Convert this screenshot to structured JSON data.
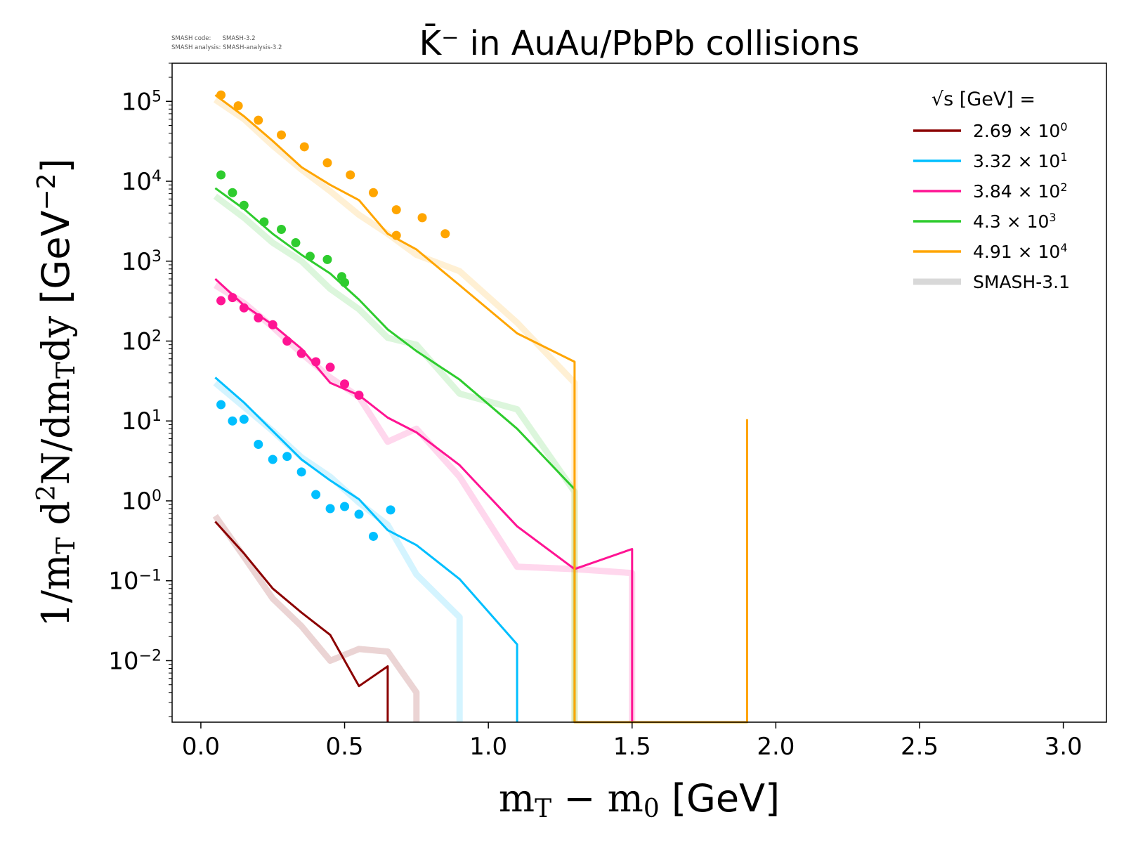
{
  "version_info": {
    "code_line": "SMASH code:      SMASH-3.2",
    "analysis_line": "SMASH analysis: SMASH-analysis-3.2"
  },
  "chart_data": {
    "type": "line",
    "title": "K̄⁻ in AuAu/PbPb collisions",
    "xlabel": "m_T − m_0 [GeV]",
    "ylabel": "1/m_T d²N/dm_T dy [GeV⁻²]",
    "xlim": [
      -0.1,
      3.15
    ],
    "ylim": [
      0.0017,
      300000
    ],
    "yscale": "log",
    "x_ticks": [
      "0.0",
      "0.5",
      "1.0",
      "1.5",
      "2.0",
      "2.5",
      "3.0"
    ],
    "y_ticks": [
      "10^-2",
      "10^-1",
      "10^0",
      "10^1",
      "10^2",
      "10^3",
      "10^4",
      "10^5"
    ],
    "grid": false,
    "legend_title": "√s [GeV] =",
    "legend_position": "top-right",
    "series": [
      {
        "name": "2.69 × 10^0",
        "color": "#8b0000",
        "smash_3_2": {
          "x": [
            0.05,
            0.15,
            0.25,
            0.35,
            0.45,
            0.55,
            0.65,
            0.65
          ],
          "y": [
            0.55,
            0.22,
            0.08,
            0.04,
            0.021,
            0.0048,
            0.0085,
            0.0017
          ]
        },
        "smash_3_1": {
          "x": [
            0.05,
            0.15,
            0.25,
            0.35,
            0.45,
            0.55,
            0.65,
            0.75,
            0.75
          ],
          "y": [
            0.65,
            0.2,
            0.06,
            0.027,
            0.01,
            0.014,
            0.013,
            0.004,
            0.0017
          ]
        },
        "experiment": {
          "x": [],
          "y": []
        }
      },
      {
        "name": "3.32 × 10^1",
        "color": "#00bfff",
        "smash_3_2": {
          "x": [
            0.05,
            0.15,
            0.25,
            0.35,
            0.45,
            0.55,
            0.65,
            0.75,
            0.9,
            1.1,
            1.1
          ],
          "y": [
            35,
            17,
            7.5,
            3.3,
            1.8,
            1.05,
            0.43,
            0.28,
            0.105,
            0.016,
            0.0017
          ]
        },
        "smash_3_1": {
          "x": [
            0.05,
            0.15,
            0.25,
            0.35,
            0.45,
            0.55,
            0.65,
            0.75,
            0.9,
            0.9
          ],
          "y": [
            30,
            15,
            7.5,
            3.5,
            2.0,
            0.95,
            0.5,
            0.12,
            0.035,
            0.0017
          ]
        },
        "experiment": {
          "x": [
            0.07,
            0.11,
            0.15,
            0.2,
            0.25,
            0.3,
            0.35,
            0.4,
            0.45,
            0.5,
            0.55,
            0.6,
            0.66
          ],
          "y": [
            16,
            10,
            10.5,
            5.1,
            3.3,
            3.6,
            2.3,
            1.2,
            0.8,
            0.85,
            0.68,
            0.36,
            0.77
          ]
        }
      },
      {
        "name": "3.84 × 10^2",
        "color": "#ff1493",
        "smash_3_2": {
          "x": [
            0.05,
            0.15,
            0.25,
            0.35,
            0.45,
            0.55,
            0.65,
            0.75,
            0.9,
            1.1,
            1.3,
            1.5,
            1.5
          ],
          "y": [
            600,
            280,
            160,
            80,
            30,
            21,
            11,
            7.2,
            2.8,
            0.48,
            0.14,
            0.25,
            0.0017
          ]
        },
        "smash_3_1": {
          "x": [
            0.05,
            0.15,
            0.25,
            0.35,
            0.45,
            0.55,
            0.65,
            0.75,
            0.9,
            1.1,
            1.3,
            1.5,
            1.5
          ],
          "y": [
            500,
            300,
            150,
            70,
            35,
            20,
            5.5,
            8,
            2,
            0.15,
            0.14,
            0.125,
            0.0017
          ]
        },
        "experiment": {
          "x": [
            0.07,
            0.11,
            0.15,
            0.2,
            0.25,
            0.3,
            0.35,
            0.4,
            0.45,
            0.5,
            0.55
          ],
          "y": [
            320,
            350,
            260,
            195,
            160,
            100,
            70,
            55,
            47,
            29,
            21
          ]
        }
      },
      {
        "name": "4.3 × 10^3",
        "color": "#2ecc2e",
        "smash_3_2": {
          "x": [
            0.05,
            0.15,
            0.25,
            0.35,
            0.45,
            0.55,
            0.65,
            0.75,
            0.9,
            1.1,
            1.3,
            1.3
          ],
          "y": [
            8200,
            4500,
            2200,
            1200,
            700,
            330,
            140,
            75,
            33,
            8,
            1.4,
            0.0017
          ]
        },
        "smash_3_1": {
          "x": [
            0.05,
            0.15,
            0.25,
            0.35,
            0.45,
            0.55,
            0.65,
            0.75,
            0.9,
            1.1,
            1.3,
            1.3
          ],
          "y": [
            6500,
            3500,
            1700,
            1000,
            450,
            250,
            110,
            90,
            22,
            14,
            1.3,
            0.0017
          ]
        },
        "experiment": {
          "x": [
            0.07,
            0.11,
            0.15,
            0.22,
            0.28,
            0.33,
            0.38,
            0.44,
            0.49,
            0.5
          ],
          "y": [
            12000,
            7200,
            5000,
            3100,
            2500,
            1700,
            1150,
            1050,
            640,
            540
          ]
        }
      },
      {
        "name": "4.91 × 10^4",
        "color": "#ffa500",
        "smash_3_2": {
          "x": [
            0.05,
            0.15,
            0.25,
            0.35,
            0.45,
            0.55,
            0.65,
            0.75,
            0.9,
            1.1,
            1.3,
            1.3,
            1.9,
            1.9
          ],
          "y": [
            120000,
            65000,
            32000,
            15000,
            9000,
            5800,
            2200,
            1400,
            500,
            125,
            55,
            0.0017,
            0.0017,
            10.5
          ]
        },
        "smash_3_1": {
          "x": [
            0.05,
            0.15,
            0.25,
            0.35,
            0.45,
            0.55,
            0.65,
            0.75,
            0.9,
            1.1,
            1.3,
            1.3
          ],
          "y": [
            105000,
            60000,
            28000,
            14000,
            7500,
            3800,
            2200,
            1200,
            750,
            170,
            30,
            0.0017
          ]
        },
        "experiment": {
          "x": [
            0.07,
            0.13,
            0.2,
            0.28,
            0.36,
            0.44,
            0.52,
            0.6,
            0.68,
            0.68,
            0.77,
            0.85
          ],
          "y": [
            120000,
            88000,
            58000,
            38000,
            27000,
            17000,
            12000,
            7200,
            4400,
            2100,
            3500,
            2200
          ]
        }
      }
    ],
    "reference_legend": {
      "name": "SMASH-3.1",
      "color": "#d8d8d8"
    }
  }
}
